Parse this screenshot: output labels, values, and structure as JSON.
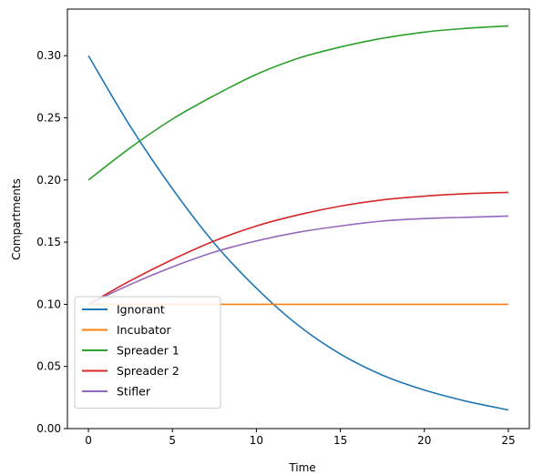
{
  "chart_data": {
    "type": "line",
    "title": "",
    "xlabel": "Time",
    "ylabel": "Compartments",
    "xlim": [
      -1.25,
      26.25
    ],
    "ylim": [
      0.0,
      0.3375
    ],
    "xticks": [
      0,
      5,
      10,
      15,
      20,
      25
    ],
    "xtick_labels": [
      "0",
      "5",
      "10",
      "15",
      "20",
      "25"
    ],
    "yticks": [
      0.0,
      0.05,
      0.1,
      0.15,
      0.2,
      0.25,
      0.3
    ],
    "ytick_labels": [
      "0.00",
      "0.05",
      "0.10",
      "0.15",
      "0.20",
      "0.25",
      "0.30"
    ],
    "grid": false,
    "legend_position": "lower-left",
    "x": [
      0,
      2.5,
      5,
      7.5,
      10,
      12.5,
      15,
      17.5,
      20,
      22.5,
      25
    ],
    "series": [
      {
        "name": "Ignorant",
        "color": "#1f77b4",
        "values": [
          0.3,
          0.243,
          0.193,
          0.149,
          0.113,
          0.083,
          0.06,
          0.043,
          0.031,
          0.022,
          0.015
        ]
      },
      {
        "name": "Incubator",
        "color": "#ff7f0e",
        "values": [
          0.1,
          0.1,
          0.1,
          0.1,
          0.1,
          0.1,
          0.1,
          0.1,
          0.1,
          0.1,
          0.1
        ]
      },
      {
        "name": "Spreader 1",
        "color": "#2ca02c",
        "values": [
          0.2,
          0.226,
          0.249,
          0.268,
          0.285,
          0.298,
          0.307,
          0.314,
          0.319,
          0.322,
          0.324
        ]
      },
      {
        "name": "Spreader 2",
        "color": "#d62728",
        "values": [
          0.1,
          0.119,
          0.136,
          0.151,
          0.163,
          0.172,
          0.179,
          0.184,
          0.187,
          0.189,
          0.19
        ]
      },
      {
        "name": "Stifler",
        "color": "#9467bd",
        "values": [
          0.1,
          0.116,
          0.13,
          0.142,
          0.151,
          0.158,
          0.163,
          0.167,
          0.169,
          0.17,
          0.171
        ]
      }
    ]
  }
}
